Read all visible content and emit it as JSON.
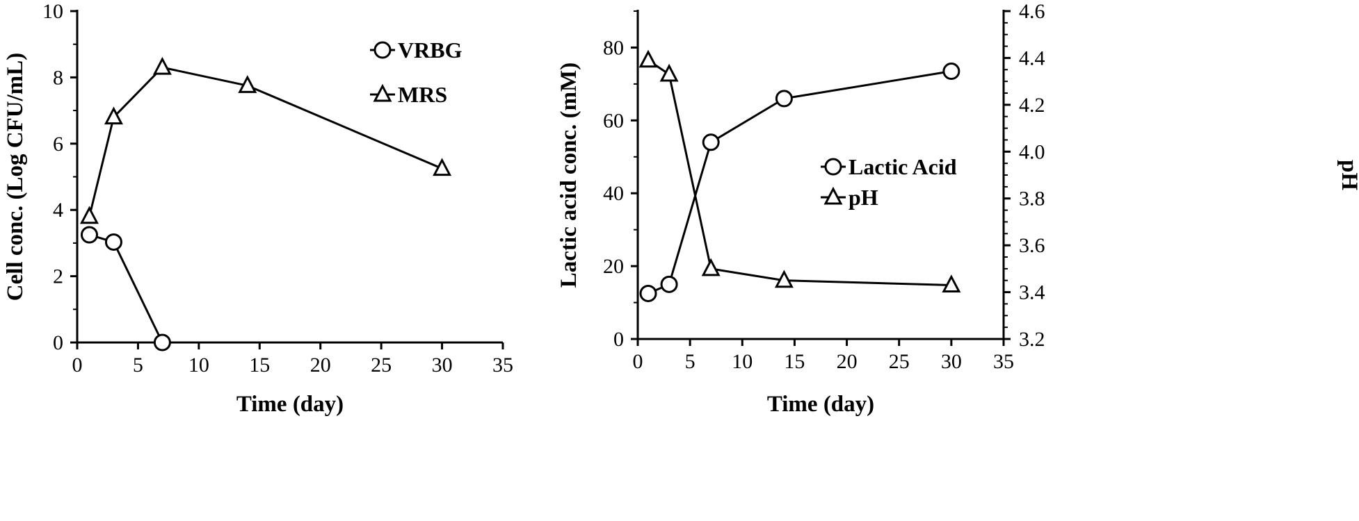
{
  "chart_data": [
    {
      "type": "line",
      "title": "",
      "xlabel": "Time  (day)",
      "ylabel": "Cell conc. (Log CFU/mL)",
      "xlim": [
        0,
        35
      ],
      "ylim": [
        0,
        10
      ],
      "xticks": [
        "0",
        "5",
        "10",
        "15",
        "20",
        "25",
        "30",
        "35"
      ],
      "yticks": [
        "0",
        "2",
        "4",
        "6",
        "8",
        "10"
      ],
      "grid": false,
      "legend_position": "top-right",
      "series": [
        {
          "name": "VRBG",
          "marker": "circle",
          "x": [
            1,
            3,
            7
          ],
          "y": [
            3.25,
            3.03,
            0
          ]
        },
        {
          "name": "MRS",
          "marker": "triangle",
          "x": [
            1,
            3,
            7,
            14,
            30
          ],
          "y": [
            3.8,
            6.8,
            8.3,
            7.75,
            5.25
          ]
        }
      ]
    },
    {
      "type": "line",
      "title": "",
      "xlabel": "Time  (day)",
      "ylabel": "Lactic acid conc. (mM)",
      "y2label": "pH",
      "xlim": [
        0,
        35
      ],
      "ylim": [
        0,
        90
      ],
      "y2lim": [
        3.2,
        4.6
      ],
      "xticks": [
        "0",
        "5",
        "10",
        "15",
        "20",
        "25",
        "30",
        "35"
      ],
      "yticks": [
        "0",
        "20",
        "40",
        "60",
        "80"
      ],
      "y2ticks": [
        "3.2",
        "3.4",
        "3.6",
        "3.8",
        "4.0",
        "4.2",
        "4.4",
        "4.6"
      ],
      "grid": false,
      "legend_position": "center-right",
      "series": [
        {
          "name": "Lactic Acid",
          "marker": "circle",
          "axis": "left",
          "x": [
            1,
            3,
            7,
            14,
            30
          ],
          "y": [
            12.5,
            15,
            54,
            66,
            73.5
          ]
        },
        {
          "name": "pH",
          "marker": "triangle",
          "axis": "right",
          "x": [
            1,
            3,
            7,
            14,
            30
          ],
          "y": [
            4.39,
            4.33,
            3.5,
            3.45,
            3.43
          ]
        }
      ]
    }
  ]
}
